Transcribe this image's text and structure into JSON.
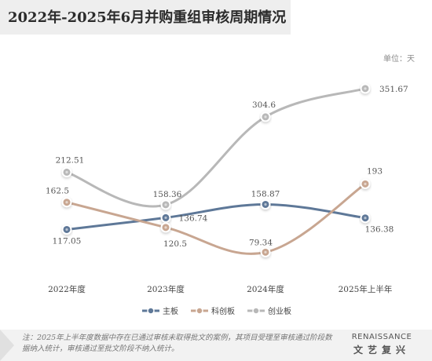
{
  "title": "2022年-2025年6月并购重组审核周期情况",
  "unit": "单位：天",
  "chart_data": {
    "type": "line",
    "categories": [
      "2022年度",
      "2023年度",
      "2024年度",
      "2025年上半年"
    ],
    "series": [
      {
        "name": "主板",
        "values": [
          117.05,
          136.74,
          158.87,
          136.38
        ],
        "labels": [
          "117.05",
          "136.74",
          "158.87",
          "136.38"
        ],
        "color": "#5e7898"
      },
      {
        "name": "科创板",
        "values": [
          162.5,
          120.5,
          79.34,
          193
        ],
        "labels": [
          "162.5",
          "120.5",
          "79.34",
          "193"
        ],
        "color": "#c8a691"
      },
      {
        "name": "创业板",
        "values": [
          212.51,
          158.36,
          304.6,
          351.67
        ],
        "labels": [
          "212.51",
          "158.36",
          "304.6",
          "351.67"
        ],
        "color": "#b8b8b8"
      }
    ],
    "ylim": [
      55,
      375
    ],
    "grid": false,
    "legend": "bottom"
  },
  "footnote": "注：2025年上半年度数据中存在已通过审核未取得批文的案例，其项目受理至审核通过阶段数据纳入统计，审核通过至批文阶段不纳入统计。",
  "logo": {
    "en": "RENAISSANCE",
    "cn": "文艺复兴"
  }
}
